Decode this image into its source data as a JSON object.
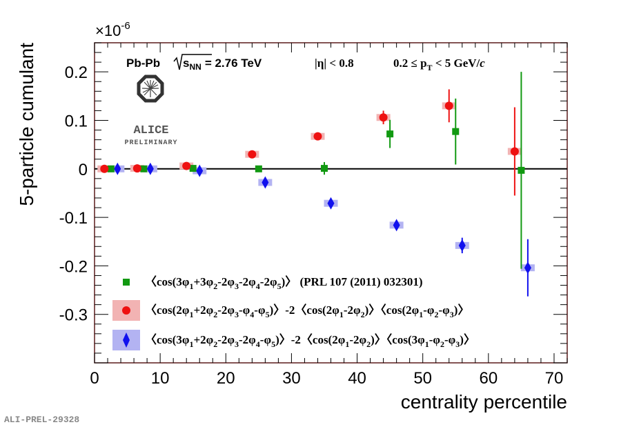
{
  "chart_data": {
    "type": "scatter",
    "title": "",
    "xlabel": "centrality percentile",
    "ylabel": "5-particle cumulant",
    "xlim": [
      0,
      72
    ],
    "ylim": [
      -0.4,
      0.26
    ],
    "y_multiplier": "×10",
    "y_multiplier_exp": "-6",
    "x_ticks": [
      0,
      10,
      20,
      30,
      40,
      50,
      60,
      70
    ],
    "x_tick_labels": [
      "0",
      "10",
      "20",
      "30",
      "40",
      "50",
      "60",
      "70"
    ],
    "y_ticks": [
      0.2,
      0.1,
      0,
      -0.1,
      -0.2,
      -0.3
    ],
    "y_tick_labels": [
      "0.2",
      "0.1",
      "0",
      "-0.1",
      "-0.2",
      "-0.3"
    ],
    "grid": false,
    "legend_position": "bottom-center",
    "series": [
      {
        "marker": "square",
        "color": "#119911",
        "points": [
          {
            "x": 2.5,
            "y": 0.0,
            "err": 0.004
          },
          {
            "x": 7.5,
            "y": 0.0,
            "err": 0.004
          },
          {
            "x": 15,
            "y": 0.001,
            "err": 0.004
          },
          {
            "x": 25,
            "y": 0.0,
            "err": 0.005
          },
          {
            "x": 35,
            "y": 0.001,
            "err": 0.013
          },
          {
            "x": 45,
            "y": 0.072,
            "err": 0.029
          },
          {
            "x": 55,
            "y": 0.077,
            "err": 0.068
          },
          {
            "x": 65,
            "y": -0.003,
            "err": 0.203
          }
        ]
      },
      {
        "marker": "circle",
        "color": "#ee1111",
        "sys_color": "#f2b3b3",
        "points": [
          {
            "x": 1.5,
            "y": 0.0,
            "err": 0.003
          },
          {
            "x": 6.5,
            "y": 0.001,
            "err": 0.003
          },
          {
            "x": 14,
            "y": 0.006,
            "err": 0.004
          },
          {
            "x": 24,
            "y": 0.03,
            "err": 0.004
          },
          {
            "x": 34,
            "y": 0.067,
            "err": 0.005
          },
          {
            "x": 44,
            "y": 0.106,
            "err": 0.014
          },
          {
            "x": 54,
            "y": 0.13,
            "err": 0.034
          },
          {
            "x": 64,
            "y": 0.036,
            "err": 0.091
          }
        ]
      },
      {
        "marker": "diamond",
        "color": "#1111ee",
        "sys_color": "#b3b3f2",
        "points": [
          {
            "x": 3.5,
            "y": 0.0,
            "err": 0.003
          },
          {
            "x": 8.5,
            "y": 0.0,
            "err": 0.003
          },
          {
            "x": 16,
            "y": -0.004,
            "err": 0.004
          },
          {
            "x": 26,
            "y": -0.028,
            "err": 0.005
          },
          {
            "x": 36,
            "y": -0.071,
            "err": 0.006
          },
          {
            "x": 46,
            "y": -0.116,
            "err": 0.007
          },
          {
            "x": 56,
            "y": -0.158,
            "err": 0.016
          },
          {
            "x": 66,
            "y": -0.204,
            "err": 0.059
          }
        ]
      }
    ]
  },
  "header": {
    "system": "Pb-Pb",
    "energy_sym": "s",
    "energy_sub": "NN",
    "energy_val": "= 2.76 TeV",
    "eta_cut": "|η| < 0.8",
    "pt_cut_pre": "0.2 ≤ p",
    "pt_cut_sub": "T",
    "pt_cut_post": " < 5 GeV/",
    "pt_cut_unit": "c"
  },
  "logo": {
    "name": "ALICE",
    "status": "PRELIMINARY"
  },
  "figure_id": "ALI-PREL-29328",
  "legend": {
    "entry1": {
      "parts": [
        "〈cos(3φ",
        "1",
        "+3φ",
        "2",
        "-2φ",
        "3",
        "-2φ",
        "4",
        "-2φ",
        "5",
        ")〉"
      ],
      "suffix": "(PRL 107 (2011) 032301)"
    },
    "entry2": {
      "parts": [
        "〈cos(2φ",
        "1",
        "+2φ",
        "2",
        "-2φ",
        "3",
        "-φ",
        "4",
        "-φ",
        "5",
        ")〉-2〈cos(2φ",
        "1",
        "-2φ",
        "2",
        ")〉〈cos(2φ",
        "1",
        "-φ",
        "2",
        "-φ",
        "3",
        ")〉"
      ]
    },
    "entry3": {
      "parts": [
        "〈cos(3φ",
        "1",
        "+2φ",
        "2",
        "-2φ",
        "3",
        "-2φ",
        "4",
        "-φ",
        "5",
        ")〉-2〈cos(2φ",
        "1",
        "-2φ",
        "2",
        ")〉〈cos(3φ",
        "1",
        "-φ",
        "2",
        "-φ",
        "3",
        ")〉"
      ]
    }
  }
}
